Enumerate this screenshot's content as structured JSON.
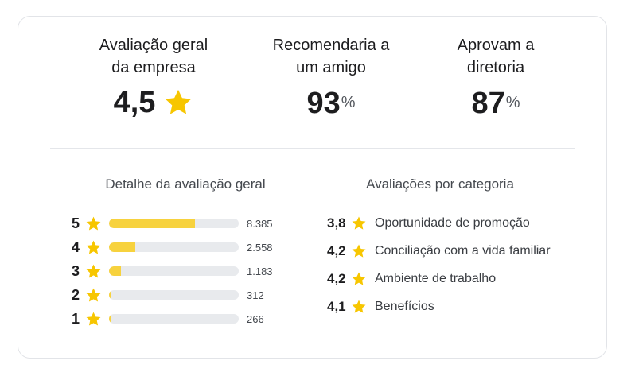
{
  "summary": {
    "overall": {
      "label_line1": "Avaliação geral",
      "label_line2": "da empresa",
      "value": "4,5"
    },
    "recommend": {
      "label_line1": "Recomendaria a",
      "label_line2": "um amigo",
      "value": "93",
      "unit": "%"
    },
    "approve": {
      "label_line1": "Aprovam a",
      "label_line2": "diretoria",
      "value": "87",
      "unit": "%"
    }
  },
  "distribution": {
    "title": "Detalhe da avaliação geral",
    "rows": [
      {
        "stars": "5",
        "count": "8.385",
        "share": 0.66
      },
      {
        "stars": "4",
        "count": "2.558",
        "share": 0.2
      },
      {
        "stars": "3",
        "count": "1.183",
        "share": 0.09
      },
      {
        "stars": "2",
        "count": "312",
        "share": 0.02
      },
      {
        "stars": "1",
        "count": "266",
        "share": 0.02
      }
    ]
  },
  "categories": {
    "title": "Avaliações por categoria",
    "items": [
      {
        "score": "3,8",
        "label": "Oportunidade de promoção"
      },
      {
        "score": "4,2",
        "label": "Conciliação com a vida familiar"
      },
      {
        "score": "4,2",
        "label": "Ambiente de trabalho"
      },
      {
        "score": "4,1",
        "label": "Benefícios"
      }
    ]
  },
  "icons": {
    "star": "star-icon"
  },
  "colors": {
    "star": "#f7c600",
    "bar_fill": "#f7d23e",
    "bar_track": "#e8eaed"
  }
}
